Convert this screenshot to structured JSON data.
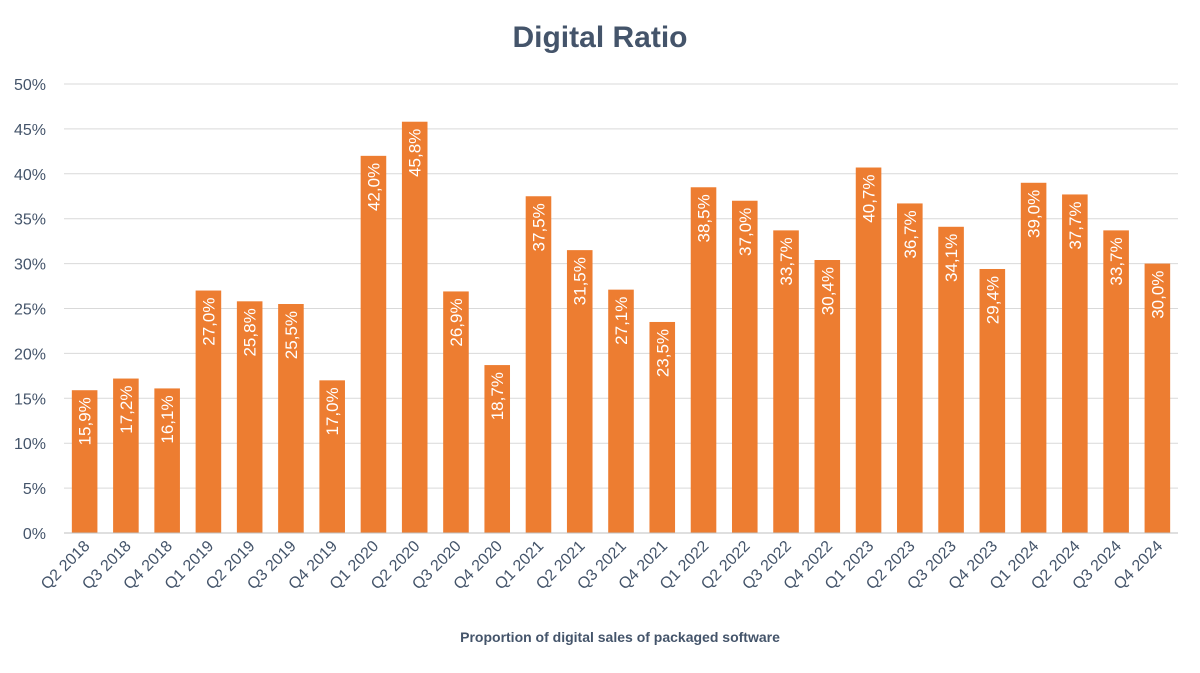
{
  "chart_data": {
    "type": "bar",
    "title": "Digital Ratio",
    "xlabel": "Proportion of digital sales of packaged software",
    "ylabel": "",
    "ylim": [
      0,
      50
    ],
    "yticks": [
      "0%",
      "5%",
      "10%",
      "15%",
      "20%",
      "25%",
      "30%",
      "35%",
      "40%",
      "45%",
      "50%"
    ],
    "bar_color": "#ed7d31",
    "categories": [
      "Q2 2018",
      "Q3 2018",
      "Q4 2018",
      "Q1 2019",
      "Q2 2019",
      "Q3 2019",
      "Q4 2019",
      "Q1 2020",
      "Q2 2020",
      "Q3 2020",
      "Q4 2020",
      "Q1 2021",
      "Q2 2021",
      "Q3 2021",
      "Q4 2021",
      "Q1 2022",
      "Q2 2022",
      "Q3 2022",
      "Q4 2022",
      "Q1 2023",
      "Q2 2023",
      "Q3 2023",
      "Q4 2023",
      "Q1 2024",
      "Q2 2024",
      "Q3 2024",
      "Q4 2024"
    ],
    "values": [
      15.9,
      17.2,
      16.1,
      27.0,
      25.8,
      25.5,
      17.0,
      42.0,
      45.8,
      26.9,
      18.7,
      37.5,
      31.5,
      27.1,
      23.5,
      38.5,
      37.0,
      33.7,
      30.4,
      40.7,
      36.7,
      34.1,
      29.4,
      39.0,
      37.7,
      33.7,
      30.0
    ],
    "labels": [
      "15,9%",
      "17,2%",
      "16,1%",
      "27,0%",
      "25,8%",
      "25,5%",
      "17,0%",
      "42,0%",
      "45,8%",
      "26,9%",
      "18,7%",
      "37,5%",
      "31,5%",
      "27,1%",
      "23,5%",
      "38,5%",
      "37,0%",
      "33,7%",
      "30,4%",
      "40,7%",
      "36,7%",
      "34,1%",
      "29,4%",
      "39,0%",
      "37,7%",
      "33,7%",
      "30,0%"
    ]
  }
}
